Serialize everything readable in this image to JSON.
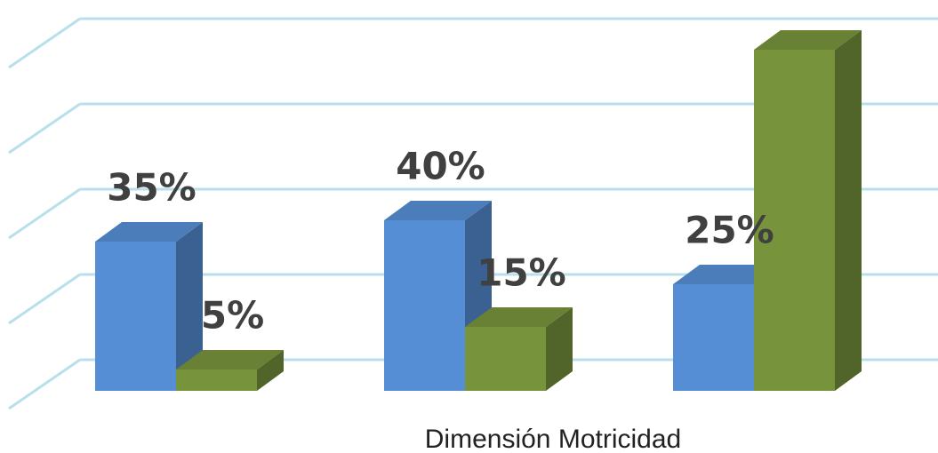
{
  "chart_data": {
    "type": "bar3d",
    "x_label": "Dimensión Motricidad",
    "categories": [
      null,
      null,
      null
    ],
    "series": [
      {
        "color": "#558ed5",
        "values": [
          35,
          40,
          25
        ],
        "value_labels": [
          "35%",
          "40%",
          "25%"
        ]
      },
      {
        "color": "#77933c",
        "values": [
          5,
          15,
          80
        ],
        "value_labels": [
          "5%",
          "15%",
          null
        ]
      }
    ],
    "ylim": [
      0,
      80
    ],
    "yticks": [
      0,
      20,
      40,
      60,
      80
    ],
    "grid": true
  }
}
